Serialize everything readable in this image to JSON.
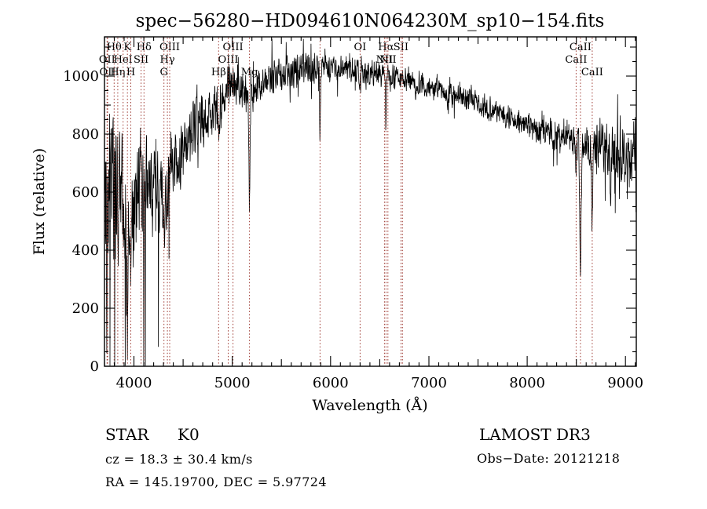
{
  "title": "spec−56280−HD094610N064230M_sp10−154.fits",
  "annotations": {
    "object_class": "STAR",
    "subclass": "K0",
    "cz_line": "cz = 18.3 ± 30.4 km/s",
    "radec_line": "RA = 145.19700, DEC =   5.97724",
    "survey": "LAMOST DR3",
    "obs_date_line": "Obs−Date: 20121218"
  },
  "chart_data": {
    "type": "line",
    "title": "spec−56280−HD094610N064230M_sp10−154.fits",
    "xlabel": "Wavelength (Å)",
    "ylabel": "Flux (relative)",
    "xlim": [
      3700,
      9110
    ],
    "ylim": [
      0,
      1135
    ],
    "x_ticks": [
      4000,
      5000,
      6000,
      7000,
      8000,
      9000
    ],
    "y_ticks": [
      0,
      200,
      400,
      600,
      800,
      1000
    ],
    "x_minor_step": 100,
    "x_mid_step": 500,
    "y_minor_step": 50,
    "y_mid_step": 100,
    "grid": false,
    "legend": "none",
    "line_color": "#000000",
    "ref_line_color": "#9e3a32",
    "spectral_lines": [
      {
        "wavelength": 3726,
        "label": "OII",
        "row": 2
      },
      {
        "wavelength": 3732,
        "label": "OII",
        "row": 3
      },
      {
        "wavelength": 3798,
        "label": "Hθ",
        "row": 1
      },
      {
        "wavelength": 3835,
        "label": "Hη",
        "row": 3
      },
      {
        "wavelength": 3889,
        "label": "HeI",
        "row": 2
      },
      {
        "wavelength": 3933,
        "label": "K",
        "row": 1
      },
      {
        "wavelength": 3968,
        "label": "H",
        "row": 3
      },
      {
        "wavelength": 4072,
        "label": "SII",
        "row": 2
      },
      {
        "wavelength": 4102,
        "label": "Hδ",
        "row": 1
      },
      {
        "wavelength": 4305,
        "label": "G",
        "row": 3
      },
      {
        "wavelength": 4340,
        "label": "Hγ",
        "row": 2
      },
      {
        "wavelength": 4363,
        "label": "OIII",
        "row": 1
      },
      {
        "wavelength": 4861,
        "label": "Hβ",
        "row": 3
      },
      {
        "wavelength": 4959,
        "label": "OIII",
        "row": 2
      },
      {
        "wavelength": 5007,
        "label": "OIII",
        "row": 1
      },
      {
        "wavelength": 5175,
        "label": "Mg",
        "row": 3
      },
      {
        "wavelength": 5893,
        "label": "",
        "row": 0
      },
      {
        "wavelength": 6300,
        "label": "OI",
        "row": 1
      },
      {
        "wavelength": 6548,
        "label": "NII",
        "row": 2
      },
      {
        "wavelength": 6563,
        "label": "Hα",
        "row": 1
      },
      {
        "wavelength": 6583,
        "label": "NII",
        "row": 2
      },
      {
        "wavelength": 6716,
        "label": "SII",
        "row": 1
      },
      {
        "wavelength": 6731,
        "label": "",
        "row": 0
      },
      {
        "wavelength": 8498,
        "label": "CaII",
        "row": 2
      },
      {
        "wavelength": 8542,
        "label": "CaII",
        "row": 1
      },
      {
        "wavelength": 8662,
        "label": "CaII",
        "row": 3
      }
    ],
    "continuum": [
      [
        3706,
        530
      ],
      [
        3730,
        560
      ],
      [
        3780,
        590
      ],
      [
        3830,
        580
      ],
      [
        3880,
        560
      ],
      [
        3920,
        480
      ],
      [
        3950,
        430
      ],
      [
        3990,
        540
      ],
      [
        4030,
        600
      ],
      [
        4070,
        620
      ],
      [
        4110,
        600
      ],
      [
        4160,
        620
      ],
      [
        4210,
        620
      ],
      [
        4260,
        600
      ],
      [
        4310,
        590
      ],
      [
        4360,
        640
      ],
      [
        4420,
        680
      ],
      [
        4480,
        720
      ],
      [
        4540,
        770
      ],
      [
        4600,
        815
      ],
      [
        4660,
        840
      ],
      [
        4720,
        850
      ],
      [
        4780,
        880
      ],
      [
        4830,
        890
      ],
      [
        4880,
        905
      ],
      [
        4930,
        940
      ],
      [
        4980,
        960
      ],
      [
        5040,
        975
      ],
      [
        5100,
        965
      ],
      [
        5160,
        940
      ],
      [
        5230,
        950
      ],
      [
        5300,
        975
      ],
      [
        5400,
        995
      ],
      [
        5500,
        1005
      ],
      [
        5600,
        1015
      ],
      [
        5700,
        1028
      ],
      [
        5800,
        1035
      ],
      [
        5860,
        1030
      ],
      [
        5950,
        1028
      ],
      [
        6050,
        1030
      ],
      [
        6150,
        1025
      ],
      [
        6250,
        1018
      ],
      [
        6350,
        1012
      ],
      [
        6450,
        1008
      ],
      [
        6550,
        1002
      ],
      [
        6650,
        998
      ],
      [
        6750,
        990
      ],
      [
        6850,
        980
      ],
      [
        6950,
        968
      ],
      [
        7050,
        958
      ],
      [
        7150,
        950
      ],
      [
        7250,
        940
      ],
      [
        7350,
        925
      ],
      [
        7450,
        915
      ],
      [
        7550,
        900
      ],
      [
        7650,
        885
      ],
      [
        7750,
        868
      ],
      [
        7850,
        850
      ],
      [
        7950,
        838
      ],
      [
        8050,
        825
      ],
      [
        8150,
        812
      ],
      [
        8250,
        800
      ],
      [
        8350,
        790
      ],
      [
        8450,
        782
      ],
      [
        8550,
        770
      ],
      [
        8650,
        758
      ],
      [
        8750,
        765
      ],
      [
        8850,
        755
      ],
      [
        8950,
        730
      ],
      [
        9050,
        715
      ],
      [
        9108,
        740
      ]
    ],
    "noise_envelope": [
      [
        3706,
        500
      ],
      [
        3750,
        380
      ],
      [
        3800,
        300
      ],
      [
        3850,
        260
      ],
      [
        3900,
        230
      ],
      [
        3960,
        220
      ],
      [
        4020,
        200
      ],
      [
        4080,
        190
      ],
      [
        4150,
        160
      ],
      [
        4250,
        140
      ],
      [
        4350,
        130
      ],
      [
        4450,
        115
      ],
      [
        4550,
        105
      ],
      [
        4650,
        100
      ],
      [
        4750,
        95
      ],
      [
        4850,
        90
      ],
      [
        4950,
        80
      ],
      [
        5050,
        75
      ],
      [
        5200,
        68
      ],
      [
        5400,
        60
      ],
      [
        5600,
        55
      ],
      [
        5800,
        52
      ],
      [
        6000,
        48
      ],
      [
        6300,
        45
      ],
      [
        6600,
        42
      ],
      [
        6900,
        40
      ],
      [
        7200,
        38
      ],
      [
        7500,
        40
      ],
      [
        7800,
        42
      ],
      [
        8100,
        48
      ],
      [
        8400,
        55
      ],
      [
        8600,
        70
      ],
      [
        8800,
        85
      ],
      [
        9000,
        95
      ],
      [
        9108,
        110
      ]
    ],
    "absorption_dips": [
      [
        3933,
        270,
        7
      ],
      [
        3968,
        255,
        7
      ],
      [
        4101,
        140,
        6
      ],
      [
        4305,
        100,
        9
      ],
      [
        4861,
        140,
        6
      ],
      [
        5175,
        390,
        6
      ],
      [
        5893,
        250,
        5
      ],
      [
        6300,
        50,
        5
      ],
      [
        6563,
        160,
        5
      ],
      [
        6867,
        55,
        8
      ],
      [
        7190,
        40,
        8
      ],
      [
        7605,
        50,
        8
      ],
      [
        8498,
        110,
        6
      ],
      [
        8542,
        490,
        7
      ],
      [
        8662,
        250,
        6
      ],
      [
        8850,
        230,
        4
      ]
    ],
    "sample_step": 2.5,
    "seed": 42
  }
}
